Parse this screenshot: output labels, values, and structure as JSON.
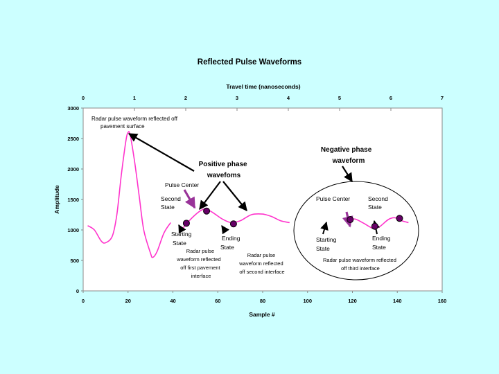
{
  "chart_data": {
    "type": "line",
    "title": "Reflected Pulse Waveforms",
    "x2label": "Travel time (nanoseconds)",
    "xlabel": "Sample #",
    "ylabel": "Amplitude",
    "xlim": [
      0,
      160
    ],
    "ylim": [
      0,
      3000
    ],
    "x2lim": [
      0,
      7
    ],
    "xticks": [
      "0",
      "20",
      "40",
      "60",
      "80",
      "100",
      "120",
      "140",
      "160"
    ],
    "yticks": [
      "0",
      "500",
      "1000",
      "1500",
      "2000",
      "2500",
      "3000"
    ],
    "x2ticks": [
      "0",
      "1",
      "2",
      "3",
      "4",
      "5",
      "6",
      "7"
    ],
    "grid": false,
    "series": [
      {
        "color": "#ff33cc",
        "segments": [
          [
            [
              2,
              1070
            ],
            [
              5,
              1000
            ],
            [
              8,
              820
            ],
            [
              10,
              790
            ],
            [
              13,
              900
            ],
            [
              15,
              1250
            ],
            [
              17,
              1900
            ],
            [
              19,
              2450
            ],
            [
              20,
              2600
            ],
            [
              21,
              2550
            ],
            [
              23,
              2100
            ],
            [
              25,
              1550
            ],
            [
              27,
              1000
            ],
            [
              30,
              620
            ],
            [
              31,
              550
            ],
            [
              33,
              650
            ],
            [
              36,
              950
            ],
            [
              39,
              1120
            ]
          ],
          [
            [
              44,
              1000
            ],
            [
              46,
              1100
            ],
            [
              50,
              1250
            ],
            [
              53,
              1330
            ],
            [
              55,
              1340
            ],
            [
              58,
              1280
            ],
            [
              62,
              1180
            ],
            [
              66,
              1120
            ],
            [
              70,
              1150
            ],
            [
              75,
              1250
            ],
            [
              80,
              1260
            ],
            [
              84,
              1220
            ],
            [
              88,
              1150
            ],
            [
              92,
              1120
            ]
          ],
          [
            [
              118,
              1150
            ],
            [
              121,
              1180
            ],
            [
              125,
              1110
            ],
            [
              129,
              1030
            ],
            [
              132,
              1050
            ],
            [
              136,
              1170
            ],
            [
              139,
              1200
            ],
            [
              142,
              1150
            ],
            [
              145,
              1120
            ]
          ]
        ]
      }
    ],
    "markers": [
      {
        "x": 46,
        "y": 1110
      },
      {
        "x": 55,
        "y": 1310
      },
      {
        "x": 67,
        "y": 1100
      },
      {
        "x": 119,
        "y": 1170
      },
      {
        "x": 130,
        "y": 1060
      },
      {
        "x": 141,
        "y": 1190
      }
    ],
    "annotations": {
      "reflected_surface": [
        "Radar pulse waveform reflected off",
        "pavement surface"
      ],
      "positive_phase": [
        "Positive phase",
        "wavefoms"
      ],
      "negative_phase": [
        "Negative phase",
        "waveform"
      ],
      "pulse_center_1": "Pulse Center",
      "second_state_1": [
        "Second",
        "State"
      ],
      "starting_state_1": [
        "Starting",
        "State"
      ],
      "ending_state_1": [
        "Ending",
        "State"
      ],
      "reflected_first": [
        "Radar pulse",
        "waveform reflected",
        "off first pavement",
        "interface"
      ],
      "reflected_second": [
        "Radar pulse",
        "waveform reflected",
        "off second interface"
      ],
      "pulse_center_2": "Pulse Center",
      "second_state_2": [
        "Second",
        "State"
      ],
      "starting_state_2": [
        "Starting",
        "State"
      ],
      "ending_state_2": [
        "Ending",
        "State"
      ],
      "reflected_third": [
        "Radar pulse waveform reflected",
        "off third interface"
      ]
    }
  }
}
